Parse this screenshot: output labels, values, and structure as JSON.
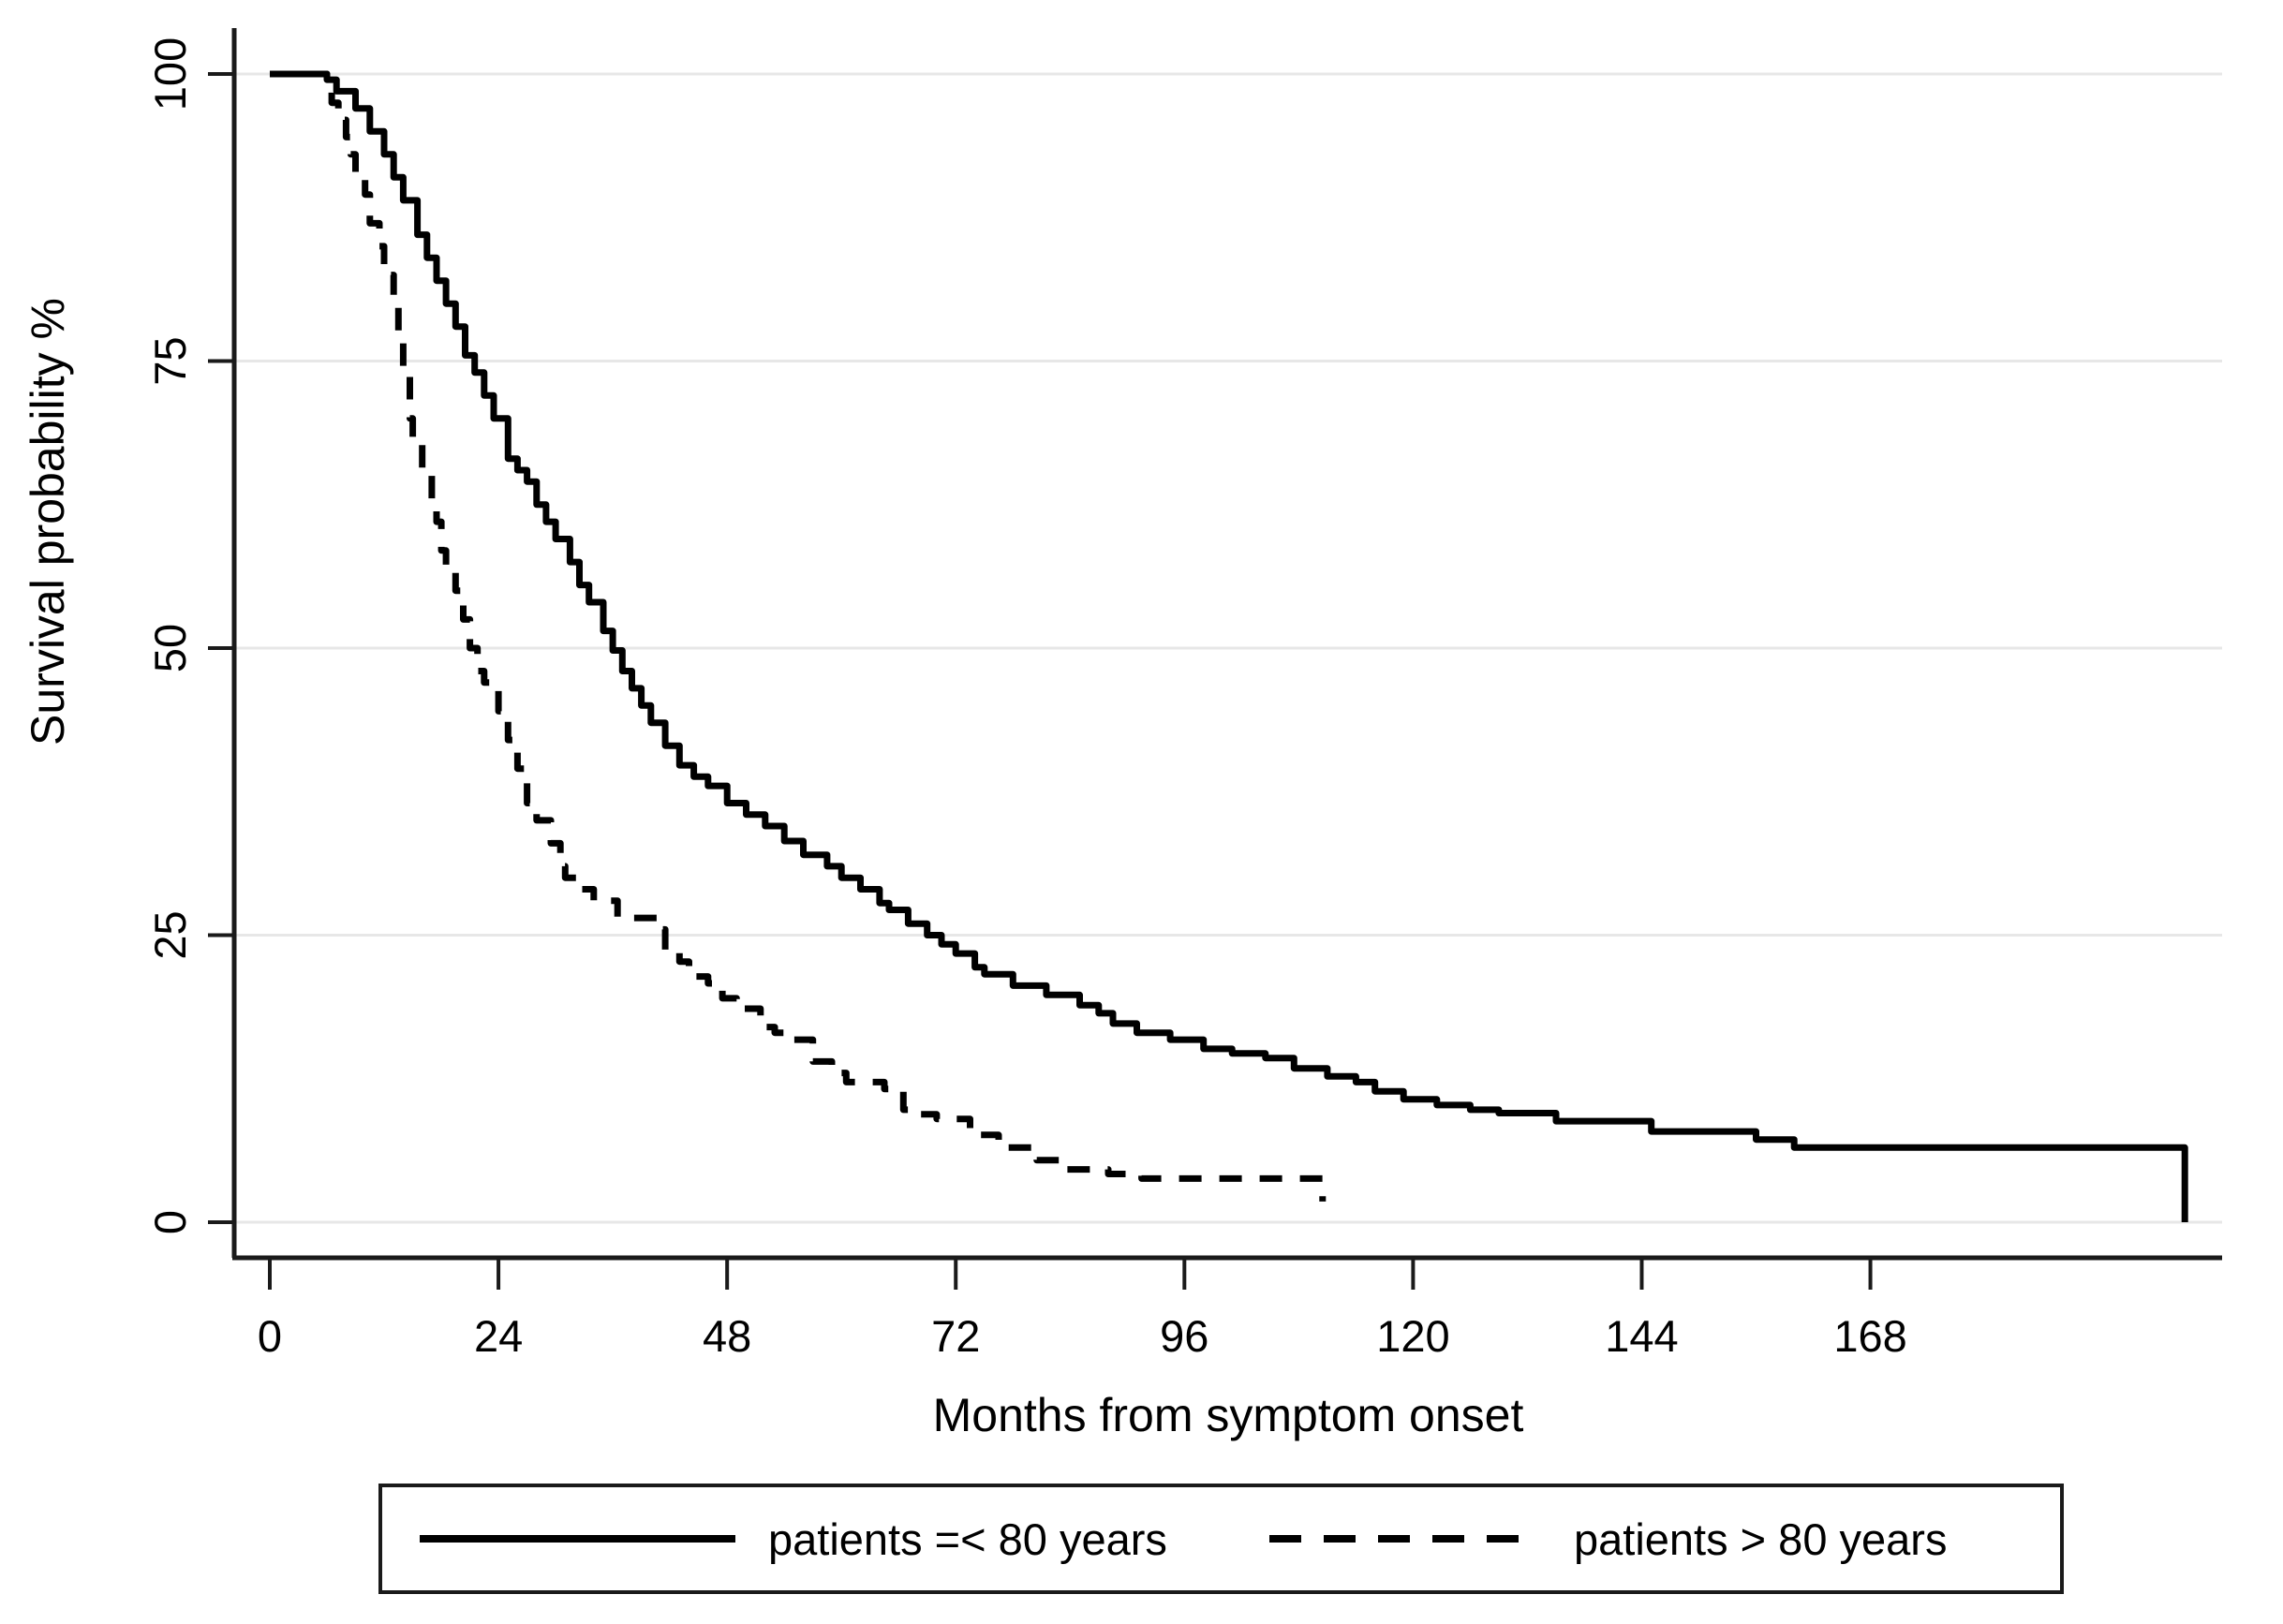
{
  "chart_data": {
    "type": "line",
    "subtype": "kaplan-meier-step",
    "title": "",
    "xlabel": "Months from symptom onset",
    "ylabel": "Survival probability %",
    "xlim": [
      0,
      205
    ],
    "ylim": [
      0,
      100
    ],
    "xticks": [
      0,
      24,
      48,
      72,
      96,
      120,
      144,
      168
    ],
    "yticks": [
      0,
      25,
      50,
      75,
      100
    ],
    "grid": "horizontal",
    "legend_position": "bottom",
    "colors": {
      "curve": "#000000",
      "grid": "#e7e7e7",
      "axis": "#1a1a1a",
      "background": "#ffffff",
      "legend_border": "#1a1a1a"
    },
    "series": [
      {
        "name": "patients =< 80 years",
        "style": "solid",
        "points": [
          [
            0,
            100
          ],
          [
            5,
            100
          ],
          [
            6,
            99.5
          ],
          [
            7,
            98.5
          ],
          [
            9,
            97
          ],
          [
            10.5,
            95
          ],
          [
            12,
            93
          ],
          [
            13,
            91
          ],
          [
            14,
            89
          ],
          [
            15.5,
            86
          ],
          [
            16.5,
            84
          ],
          [
            17.5,
            82
          ],
          [
            18.5,
            80
          ],
          [
            19.5,
            78
          ],
          [
            20.5,
            75.5
          ],
          [
            21.5,
            74
          ],
          [
            22.5,
            72
          ],
          [
            23.5,
            70
          ],
          [
            25,
            66.5
          ],
          [
            26,
            65.5
          ],
          [
            27,
            64.5
          ],
          [
            28,
            62.5
          ],
          [
            29,
            61
          ],
          [
            30,
            59.5
          ],
          [
            31.5,
            57.5
          ],
          [
            32.5,
            55.5
          ],
          [
            33.5,
            54
          ],
          [
            35,
            51.5
          ],
          [
            36,
            49.8
          ],
          [
            37,
            48
          ],
          [
            38,
            46.5
          ],
          [
            39,
            45
          ],
          [
            40,
            43.5
          ],
          [
            41.5,
            41.5
          ],
          [
            43,
            39.8
          ],
          [
            44.5,
            38.8
          ],
          [
            46,
            38
          ],
          [
            48,
            36.5
          ],
          [
            50,
            35.5
          ],
          [
            52,
            34.5
          ],
          [
            54,
            33.2
          ],
          [
            56,
            32
          ],
          [
            58.5,
            31
          ],
          [
            60,
            30
          ],
          [
            62,
            29
          ],
          [
            64,
            27.8
          ],
          [
            65,
            27.2
          ],
          [
            67,
            26
          ],
          [
            69,
            25
          ],
          [
            70.5,
            24.2
          ],
          [
            72,
            23.4
          ],
          [
            74,
            22.2
          ],
          [
            75,
            21.6
          ],
          [
            78,
            20.6
          ],
          [
            81.5,
            19.8
          ],
          [
            85,
            18.9
          ],
          [
            87,
            18.2
          ],
          [
            88.5,
            17.3
          ],
          [
            91,
            16.5
          ],
          [
            94.5,
            15.9
          ],
          [
            98,
            15.1
          ],
          [
            101,
            14.7
          ],
          [
            104.5,
            14.3
          ],
          [
            107.5,
            13.4
          ],
          [
            111,
            12.7
          ],
          [
            114,
            12.2
          ],
          [
            116,
            11.4
          ],
          [
            119,
            10.7
          ],
          [
            122.5,
            10.2
          ],
          [
            126,
            9.8
          ],
          [
            129,
            9.5
          ],
          [
            135,
            8.8
          ],
          [
            145,
            7.9
          ],
          [
            156,
            7.2
          ],
          [
            160,
            6.5
          ],
          [
            201,
            6.5
          ],
          [
            201,
            0
          ]
        ]
      },
      {
        "name": "patients > 80 years",
        "style": "dashed",
        "points": [
          [
            0,
            100
          ],
          [
            4.8,
            100
          ],
          [
            6,
            98.5
          ],
          [
            6.5,
            97.5
          ],
          [
            7.2,
            96
          ],
          [
            8,
            94.5
          ],
          [
            8.5,
            93
          ],
          [
            9,
            91
          ],
          [
            10,
            89.5
          ],
          [
            10.5,
            87
          ],
          [
            11.5,
            85
          ],
          [
            12,
            82.5
          ],
          [
            13,
            80
          ],
          [
            13.5,
            77
          ],
          [
            14,
            74
          ],
          [
            14.7,
            70
          ],
          [
            15,
            68
          ],
          [
            16,
            65
          ],
          [
            17,
            63
          ],
          [
            17.5,
            61
          ],
          [
            18,
            58.5
          ],
          [
            18.5,
            57
          ],
          [
            19.5,
            55
          ],
          [
            20.3,
            52.5
          ],
          [
            21,
            50
          ],
          [
            21.8,
            48
          ],
          [
            22.5,
            47
          ],
          [
            24,
            44.5
          ],
          [
            25,
            42
          ],
          [
            26,
            39.5
          ],
          [
            27,
            36.5
          ],
          [
            28,
            35
          ],
          [
            29.5,
            33
          ],
          [
            30.5,
            31
          ],
          [
            31,
            30
          ],
          [
            32.5,
            29
          ],
          [
            34,
            28
          ],
          [
            36.5,
            26.5
          ],
          [
            41,
            25.5
          ],
          [
            41.5,
            23.5
          ],
          [
            43,
            22.7
          ],
          [
            44,
            21.4
          ],
          [
            46,
            20.8
          ],
          [
            47.5,
            19.5
          ],
          [
            49,
            18.6
          ],
          [
            51.5,
            17
          ],
          [
            53,
            16.5
          ],
          [
            55,
            15.9
          ],
          [
            57,
            14
          ],
          [
            59,
            13
          ],
          [
            60.5,
            12.2
          ],
          [
            64.5,
            11.6
          ],
          [
            66.5,
            9.8
          ],
          [
            68,
            9.4
          ],
          [
            70,
            9
          ],
          [
            73.5,
            7.6
          ],
          [
            76.5,
            6.5
          ],
          [
            80.5,
            5.4
          ],
          [
            83.5,
            4.6
          ],
          [
            88,
            4.2
          ],
          [
            91.5,
            3.8
          ],
          [
            109.5,
            3.8
          ],
          [
            110.5,
            1.8
          ]
        ]
      }
    ]
  },
  "legend": {
    "entries": [
      {
        "label": "patients =< 80 years",
        "line": "solid"
      },
      {
        "label": "patients > 80 years",
        "line": "dashed"
      }
    ]
  }
}
